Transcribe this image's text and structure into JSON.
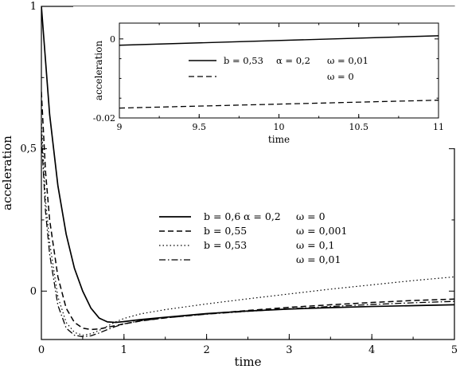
{
  "chart_data": [
    {
      "type": "line",
      "xlabel": "time",
      "ylabel": "acceleration",
      "xlim": [
        0,
        5
      ],
      "ylim": [
        -0.17,
        1
      ],
      "x_ticks": [
        "0",
        "1",
        "2",
        "3",
        "4",
        "5"
      ],
      "y_ticks": [
        "0",
        "0,5",
        "1"
      ],
      "grid": false,
      "legend": {
        "placement": "center-right",
        "rows": [
          {
            "b": "b = 0,6",
            "alpha": "α = 0,2",
            "omega": "ω = 0",
            "style": "solid"
          },
          {
            "b": "b = 0,55",
            "alpha": "",
            "omega": "ω = 0,001",
            "style": "dashed"
          },
          {
            "b": "b = 0,53",
            "alpha": "",
            "omega": "ω = 0,1",
            "style": "dotted"
          },
          {
            "b": "",
            "alpha": "",
            "omega": "ω = 0,01",
            "style": "dashdot"
          }
        ]
      },
      "series": [
        {
          "style": "solid",
          "x": [
            0,
            0.1,
            0.2,
            0.3,
            0.4,
            0.5,
            0.6,
            0.7,
            0.8,
            0.9,
            1.0,
            1.2,
            1.5,
            2.0,
            2.5,
            3.0,
            3.5,
            4.0,
            4.5,
            5.0
          ],
          "y": [
            1.0,
            0.62,
            0.37,
            0.2,
            0.08,
            0.0,
            -0.06,
            -0.095,
            -0.108,
            -0.11,
            -0.107,
            -0.1,
            -0.092,
            -0.079,
            -0.07,
            -0.063,
            -0.058,
            -0.054,
            -0.051,
            -0.048
          ]
        },
        {
          "style": "dashed",
          "x": [
            0,
            0.05,
            0.1,
            0.2,
            0.3,
            0.4,
            0.5,
            0.6,
            0.7,
            0.8,
            0.9,
            1.0,
            1.2,
            1.5,
            2.0,
            2.5,
            3.0,
            3.5,
            4.0,
            4.5,
            5.0
          ],
          "y": [
            0.7,
            0.42,
            0.25,
            0.05,
            -0.06,
            -0.11,
            -0.13,
            -0.135,
            -0.133,
            -0.127,
            -0.121,
            -0.115,
            -0.105,
            -0.094,
            -0.08,
            -0.068,
            -0.057,
            -0.048,
            -0.04,
            -0.033,
            -0.028
          ]
        },
        {
          "style": "dotted",
          "x": [
            0,
            0.05,
            0.1,
            0.2,
            0.3,
            0.4,
            0.5,
            0.6,
            0.7,
            0.8,
            0.9,
            1.0,
            1.2,
            1.5,
            2.0,
            2.5,
            3.0,
            3.5,
            4.0,
            4.5,
            5.0
          ],
          "y": [
            0.6,
            0.32,
            0.17,
            -0.02,
            -0.11,
            -0.145,
            -0.155,
            -0.15,
            -0.138,
            -0.123,
            -0.108,
            -0.096,
            -0.08,
            -0.065,
            -0.045,
            -0.027,
            -0.01,
            0.007,
            0.022,
            0.037,
            0.05
          ]
        },
        {
          "style": "dashdot",
          "x": [
            0,
            0.05,
            0.1,
            0.2,
            0.3,
            0.4,
            0.5,
            0.6,
            0.7,
            0.8,
            0.9,
            1.0,
            1.2,
            1.5,
            2.0,
            2.5,
            3.0,
            3.5,
            4.0,
            4.5,
            5.0
          ],
          "y": [
            0.55,
            0.28,
            0.13,
            -0.05,
            -0.13,
            -0.155,
            -0.16,
            -0.157,
            -0.147,
            -0.135,
            -0.124,
            -0.115,
            -0.104,
            -0.094,
            -0.081,
            -0.071,
            -0.062,
            -0.054,
            -0.047,
            -0.041,
            -0.036
          ]
        }
      ]
    },
    {
      "type": "line",
      "xlabel": "time",
      "ylabel": "acceleration",
      "xlim": [
        9,
        11
      ],
      "ylim": [
        -0.02,
        0.004
      ],
      "x_ticks": [
        "9",
        "9.5",
        "10",
        "10.5",
        "11"
      ],
      "y_ticks": [
        "-0.02",
        "0"
      ],
      "grid": false,
      "legend": {
        "placement": "center",
        "rows": [
          {
            "b": "b = 0,53",
            "alpha": "α = 0,2",
            "omega": "ω = 0,01",
            "style": "solid"
          },
          {
            "b": "",
            "alpha": "",
            "omega": "ω = 0",
            "style": "dashed"
          }
        ]
      },
      "series": [
        {
          "style": "solid",
          "x": [
            9,
            11
          ],
          "y": [
            -0.0016,
            0.0008
          ]
        },
        {
          "style": "dashed",
          "x": [
            9,
            11
          ],
          "y": [
            -0.0175,
            -0.0155
          ]
        }
      ]
    }
  ]
}
